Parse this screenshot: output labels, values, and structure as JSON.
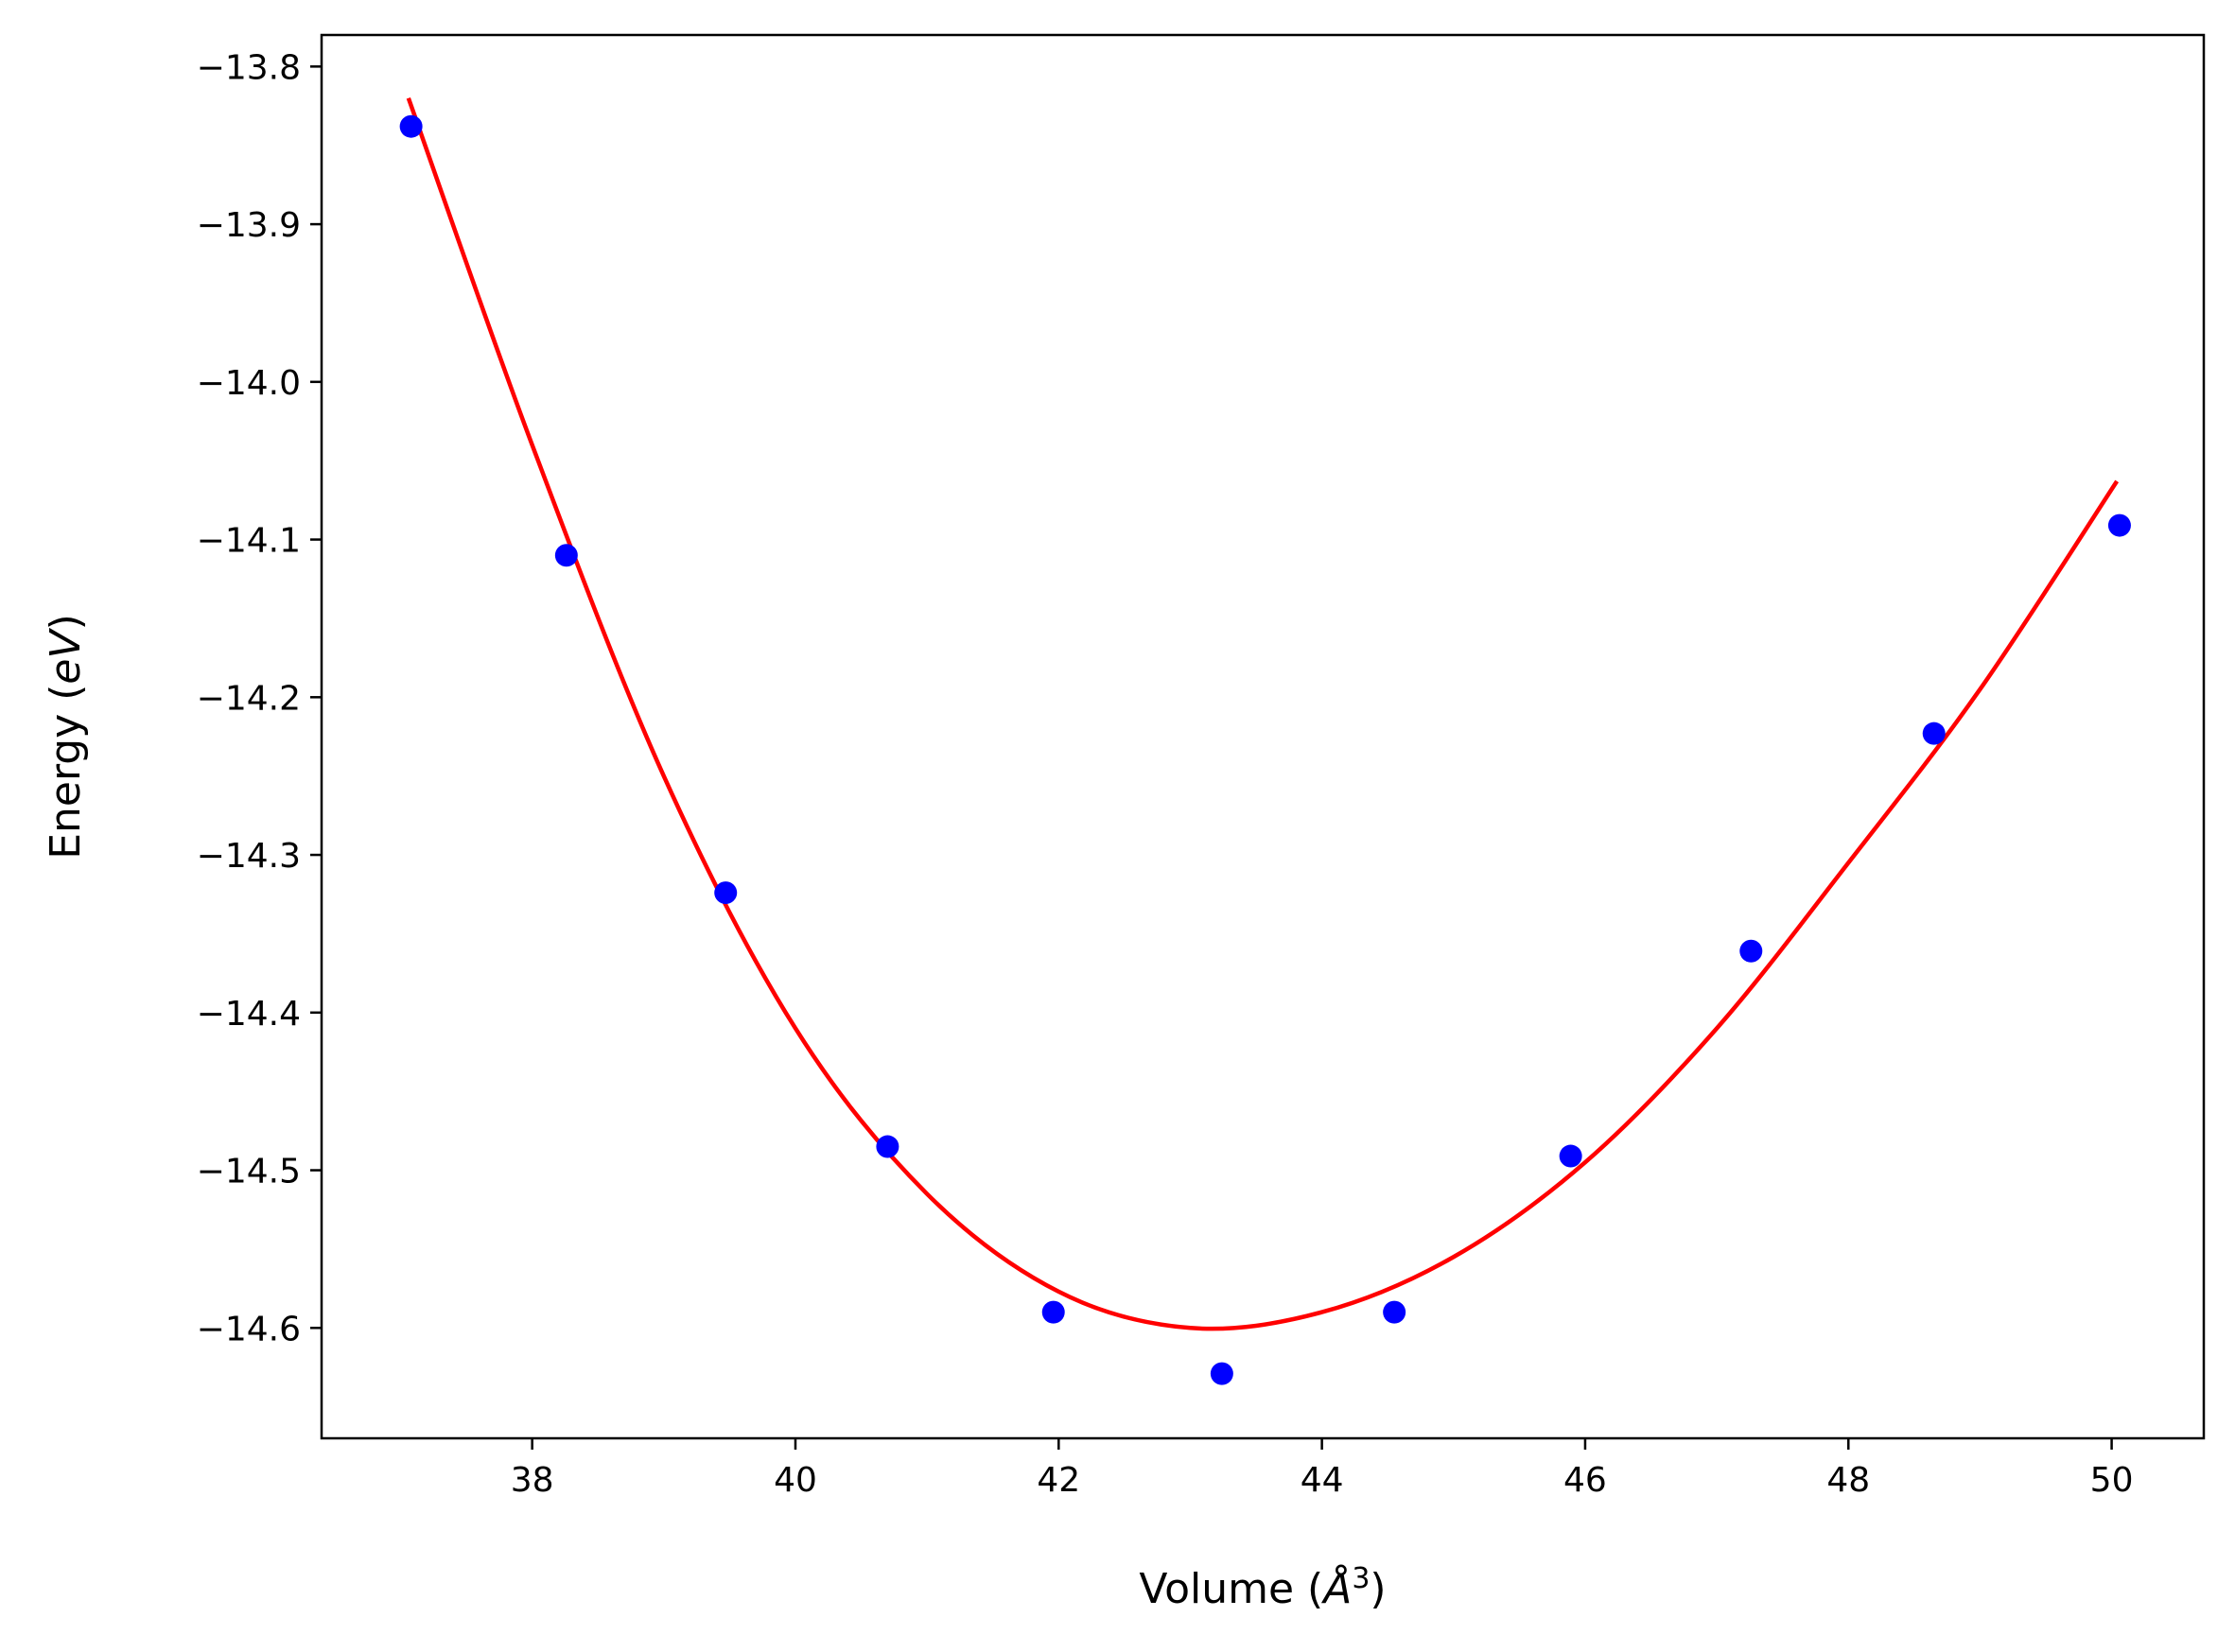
{
  "chart_data": {
    "type": "scatter",
    "title": "",
    "xlabel_main": "Volume (",
    "xlabel_unit": "Å",
    "xlabel_sup": "3",
    "xlabel_close": ")",
    "ylabel_main": "Energy (",
    "ylabel_unit": "eV",
    "ylabel_close": ")",
    "xlim": [
      36.4,
      50.7
    ],
    "ylim": [
      -14.67,
      -13.78
    ],
    "x_ticks": [
      38,
      40,
      42,
      44,
      46,
      48,
      50
    ],
    "x_tick_labels": [
      "38",
      "40",
      "42",
      "44",
      "46",
      "48",
      "50"
    ],
    "y_ticks": [
      -13.8,
      -13.9,
      -14.0,
      -14.1,
      -14.2,
      -14.3,
      -14.4,
      -14.5,
      -14.6
    ],
    "y_tick_labels": [
      "−13.8",
      "−13.9",
      "−14.0",
      "−14.1",
      "−14.2",
      "−14.3",
      "−14.4",
      "−14.5",
      "−14.6"
    ],
    "grid": false,
    "legend": "none",
    "series": [
      {
        "kind": "scatter",
        "color": "#0000ff",
        "points": [
          {
            "x": 37.08,
            "y": -13.838
          },
          {
            "x": 38.26,
            "y": -14.11
          },
          {
            "x": 39.47,
            "y": -14.324
          },
          {
            "x": 40.7,
            "y": -14.485
          },
          {
            "x": 41.96,
            "y": -14.59
          },
          {
            "x": 43.24,
            "y": -14.629
          },
          {
            "x": 44.55,
            "y": -14.59
          },
          {
            "x": 45.89,
            "y": -14.491
          },
          {
            "x": 47.26,
            "y": -14.361
          },
          {
            "x": 48.65,
            "y": -14.223
          },
          {
            "x": 50.06,
            "y": -14.091
          }
        ]
      },
      {
        "kind": "line",
        "color": "#ff0000",
        "points": [
          {
            "x": 37.06,
            "y": -13.82
          },
          {
            "x": 38.0,
            "y": -14.04
          },
          {
            "x": 39.0,
            "y": -14.25
          },
          {
            "x": 40.0,
            "y": -14.41
          },
          {
            "x": 41.0,
            "y": -14.515
          },
          {
            "x": 42.0,
            "y": -14.577
          },
          {
            "x": 43.0,
            "y": -14.6
          },
          {
            "x": 44.0,
            "y": -14.59
          },
          {
            "x": 45.0,
            "y": -14.555
          },
          {
            "x": 46.0,
            "y": -14.495
          },
          {
            "x": 47.0,
            "y": -14.41
          },
          {
            "x": 48.0,
            "y": -14.305
          },
          {
            "x": 49.0,
            "y": -14.195
          },
          {
            "x": 50.04,
            "y": -14.063
          }
        ]
      }
    ]
  }
}
